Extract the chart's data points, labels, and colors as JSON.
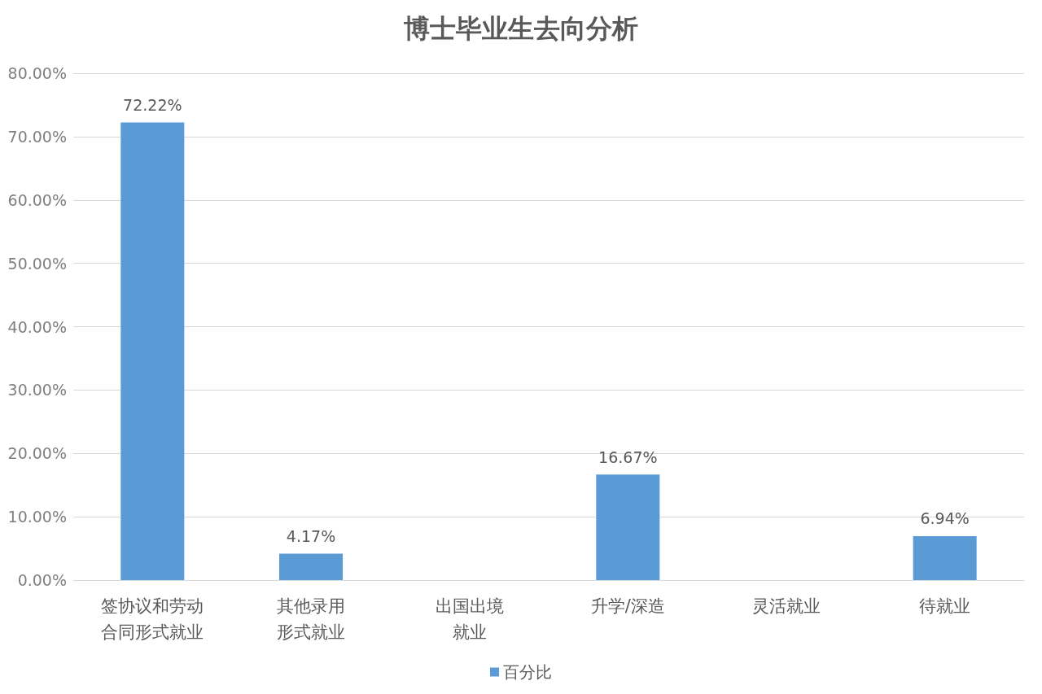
{
  "chart_data": {
    "type": "bar",
    "title": "博士毕业生去向分析",
    "categories": [
      "签协议和劳动合同形式就业",
      "其他录用形式就业",
      "出国出境就业",
      "升学/深造",
      "灵活就业",
      "待就业"
    ],
    "series": [
      {
        "name": "百分比",
        "color": "#5b9bd5",
        "values": [
          72.22,
          4.17,
          0,
          16.67,
          0,
          6.94
        ],
        "value_labels": [
          "72.22%",
          "4.17%",
          null,
          "16.67%",
          null,
          "6.94%"
        ]
      }
    ],
    "ylim": [
      0,
      80
    ],
    "yticks": [
      {
        "value": 0,
        "label": "0.00%"
      },
      {
        "value": 10,
        "label": "10.00%"
      },
      {
        "value": 20,
        "label": "20.00%"
      },
      {
        "value": 30,
        "label": "30.00%"
      },
      {
        "value": 40,
        "label": "40.00%"
      },
      {
        "value": 50,
        "label": "50.00%"
      },
      {
        "value": 60,
        "label": "60.00%"
      },
      {
        "value": 70,
        "label": "70.00%"
      },
      {
        "value": 80,
        "label": "80.00%"
      }
    ],
    "grid": "y",
    "legend": "bottom"
  }
}
